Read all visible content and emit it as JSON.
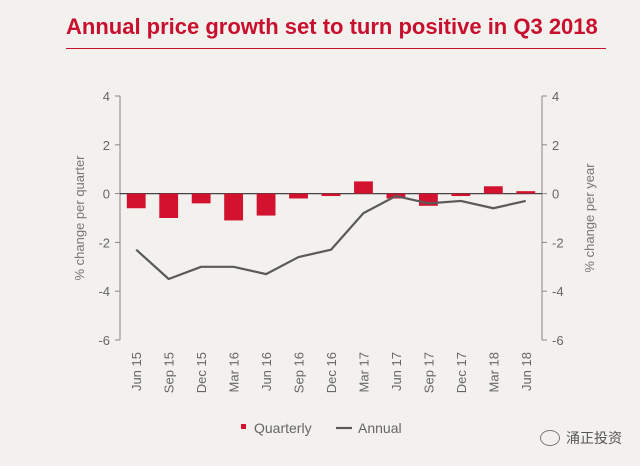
{
  "chart_data": {
    "type": "bar+line",
    "title": "Annual price growth set to turn positive in Q3 2018",
    "categories": [
      "Jun 15",
      "Sep 15",
      "Dec 15",
      "Mar 16",
      "Jun 16",
      "Sep 16",
      "Dec 16",
      "Mar 17",
      "Jun 17",
      "Sep 17",
      "Dec 17",
      "Mar 18",
      "Jun 18"
    ],
    "series": [
      {
        "name": "Quarterly",
        "type": "bar",
        "axis": "left",
        "color": "#d2122e",
        "values": [
          -0.6,
          -1.0,
          -0.4,
          -1.1,
          -0.9,
          -0.2,
          -0.1,
          0.5,
          -0.2,
          -0.5,
          -0.1,
          0.3,
          0.1
        ]
      },
      {
        "name": "Annual",
        "type": "line",
        "axis": "right",
        "color": "#5a5a5a",
        "values": [
          -2.3,
          -3.5,
          -3.0,
          -3.0,
          -3.3,
          -2.6,
          -2.3,
          -0.8,
          -0.1,
          -0.4,
          -0.3,
          -0.6,
          -0.3
        ]
      }
    ],
    "ylabel_left": "% change per quarter",
    "ylabel_right": "% change per year",
    "ylim": [
      -6,
      4
    ],
    "yticks": [
      "4",
      "2",
      "0",
      "-2",
      "-4",
      "-6"
    ],
    "legend_position": "bottom",
    "grid": false
  },
  "watermark": "涌正投资"
}
